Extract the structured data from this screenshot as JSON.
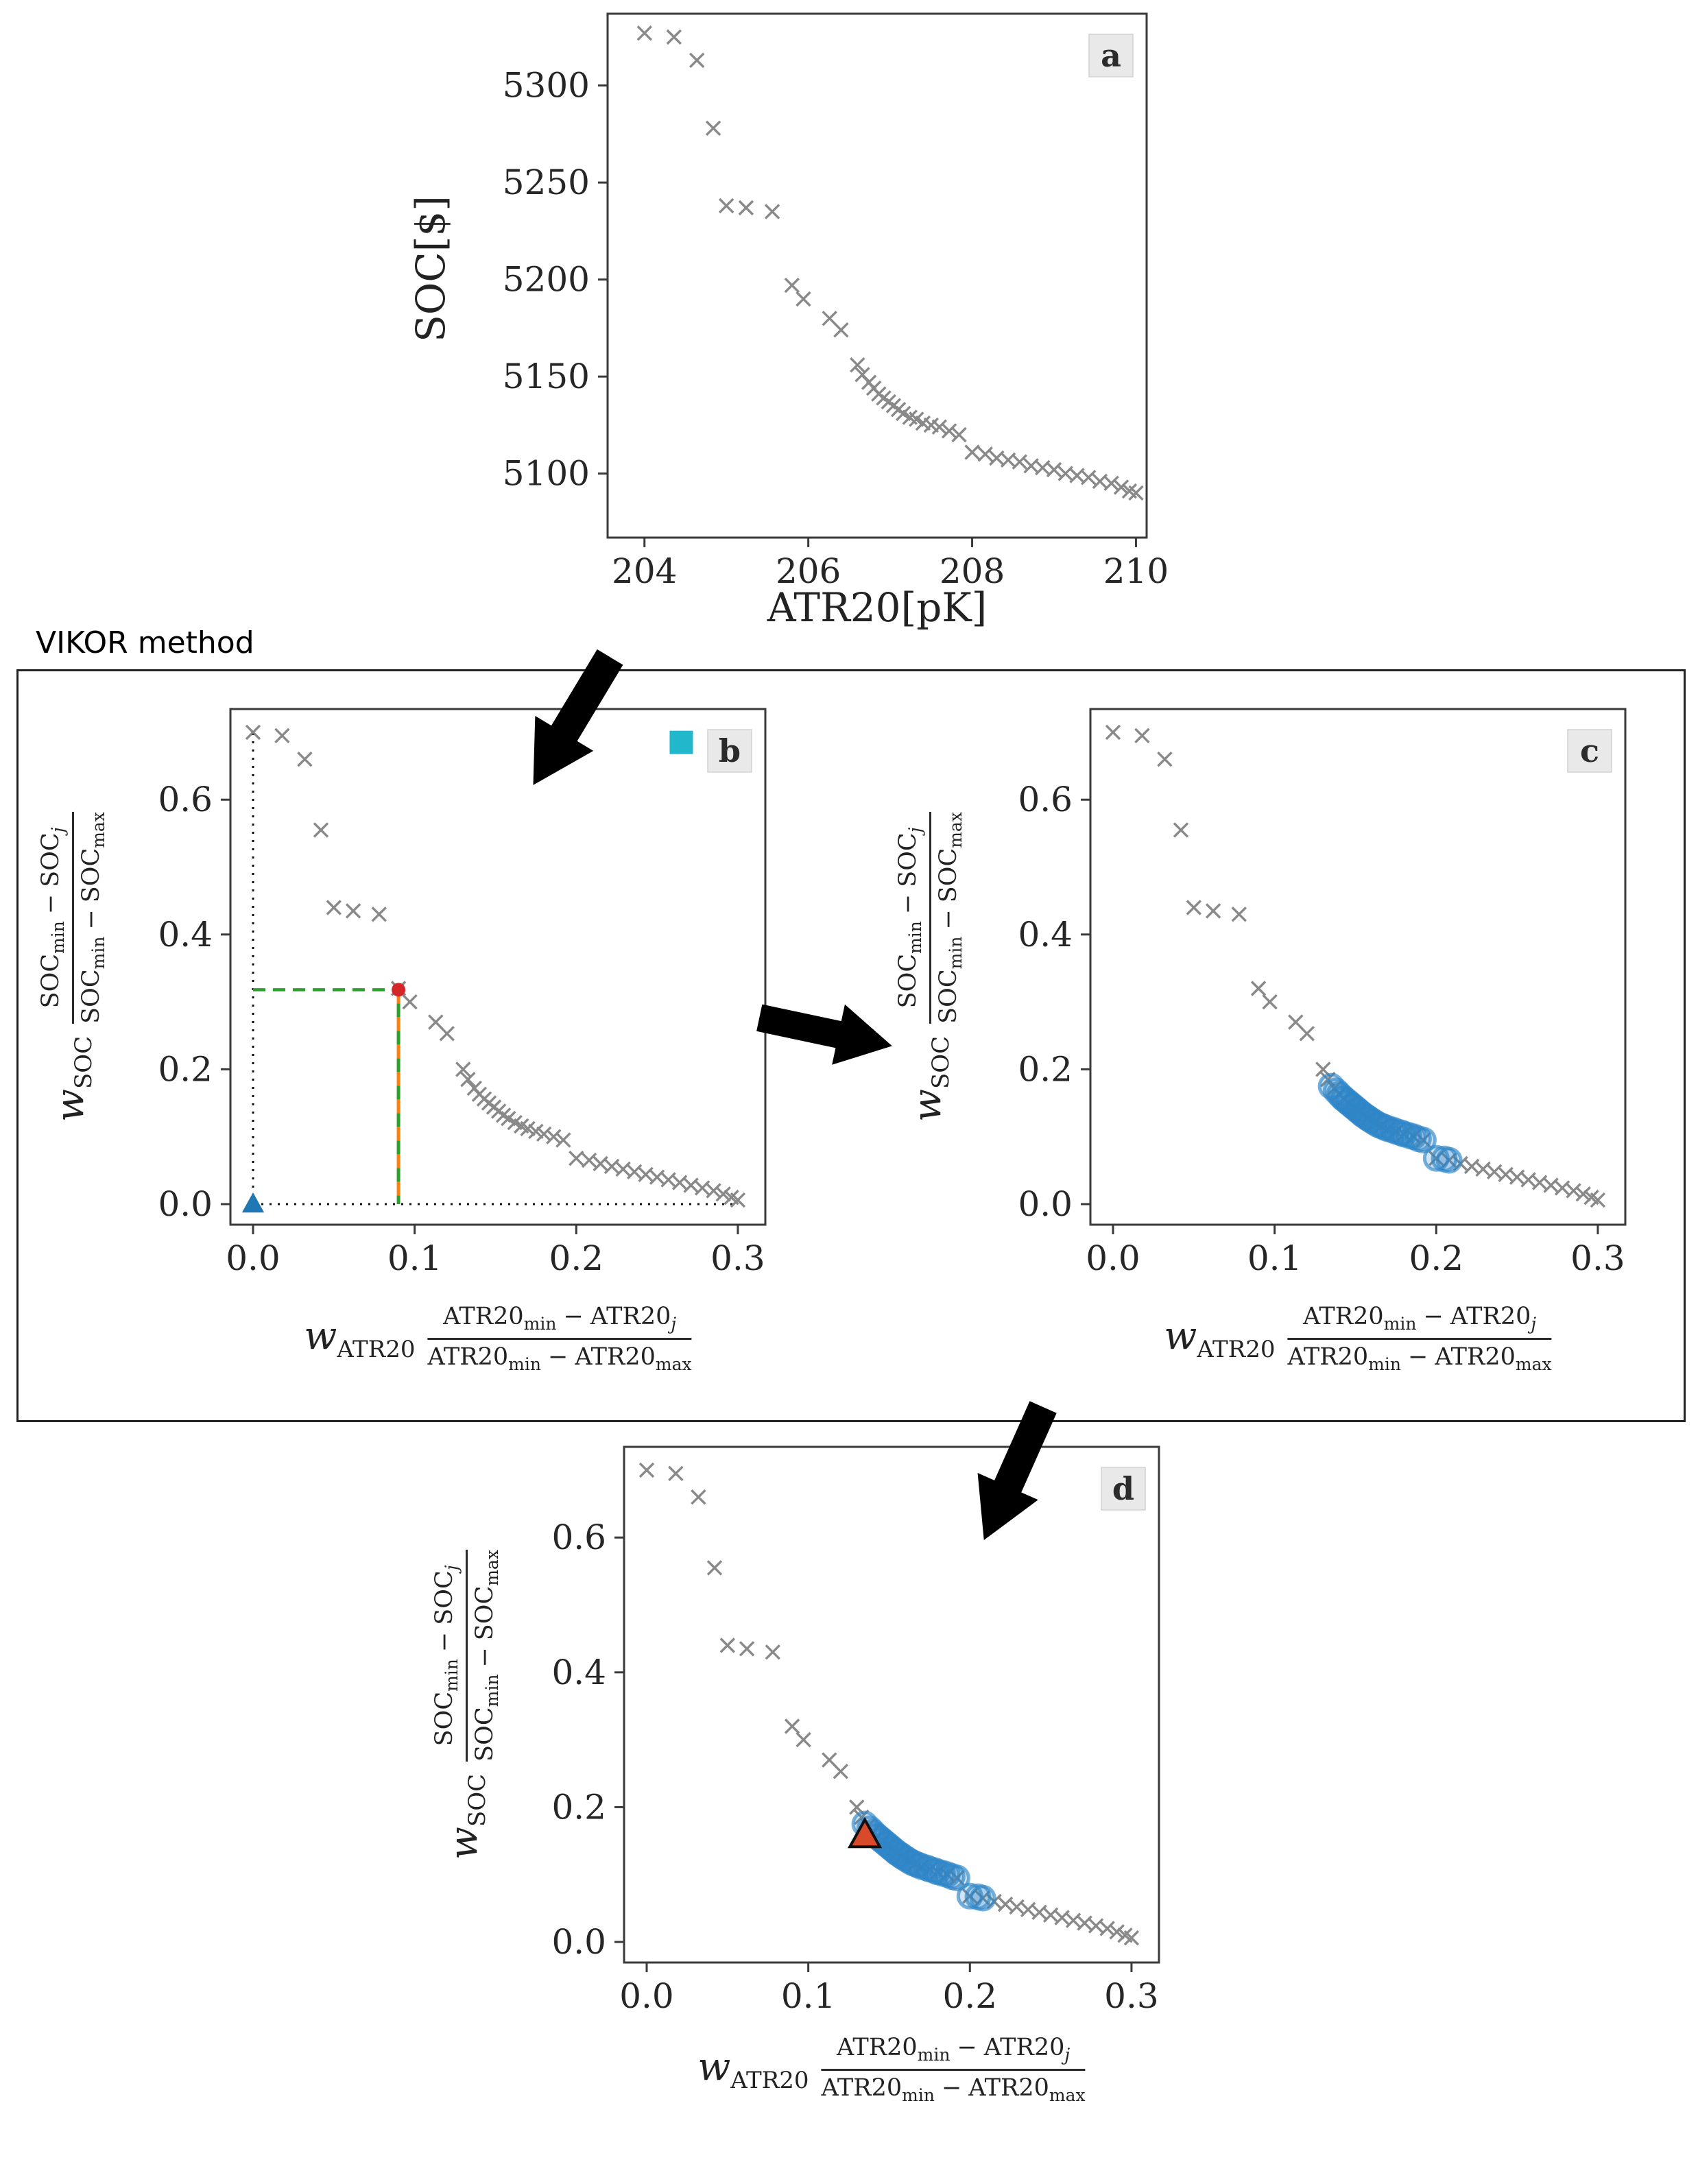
{
  "figure": {
    "vikor_label": "VIKOR method"
  },
  "norm_axis": {
    "x": {
      "w": "w",
      "wsub": "ATR20",
      "minus": "−",
      "num_a": "ATR20",
      "num_asub": "min",
      "num_b": "ATR20",
      "num_bsub": "j",
      "den_a": "ATR20",
      "den_asub": "min",
      "den_b": "ATR20",
      "den_bsub": "max"
    },
    "y": {
      "w": "w",
      "wsub": "SOC",
      "minus": "−",
      "num_a": "SOC",
      "num_asub": "min",
      "num_b": "SOC",
      "num_bsub": "j",
      "den_a": "SOC",
      "den_asub": "min",
      "den_b": "SOC",
      "den_bsub": "max"
    }
  },
  "normalized_points": [
    [
      0.0,
      0.7
    ],
    [
      0.018,
      0.695
    ],
    [
      0.032,
      0.66
    ],
    [
      0.042,
      0.555
    ],
    [
      0.05,
      0.44
    ],
    [
      0.062,
      0.435
    ],
    [
      0.078,
      0.43
    ],
    [
      0.09,
      0.32
    ],
    [
      0.097,
      0.3
    ],
    [
      0.113,
      0.27
    ],
    [
      0.12,
      0.253
    ],
    [
      0.13,
      0.2
    ],
    [
      0.133,
      0.185
    ],
    [
      0.137,
      0.172
    ],
    [
      0.14,
      0.163
    ],
    [
      0.143,
      0.156
    ],
    [
      0.146,
      0.15
    ],
    [
      0.149,
      0.144
    ],
    [
      0.152,
      0.138
    ],
    [
      0.155,
      0.132
    ],
    [
      0.158,
      0.127
    ],
    [
      0.162,
      0.121
    ],
    [
      0.166,
      0.116
    ],
    [
      0.17,
      0.112
    ],
    [
      0.175,
      0.108
    ],
    [
      0.18,
      0.104
    ],
    [
      0.186,
      0.1
    ],
    [
      0.192,
      0.095
    ],
    [
      0.2,
      0.068
    ],
    [
      0.208,
      0.065
    ],
    [
      0.215,
      0.06
    ],
    [
      0.222,
      0.056
    ],
    [
      0.229,
      0.052
    ],
    [
      0.236,
      0.048
    ],
    [
      0.243,
      0.044
    ],
    [
      0.25,
      0.04
    ],
    [
      0.257,
      0.036
    ],
    [
      0.264,
      0.032
    ],
    [
      0.271,
      0.028
    ],
    [
      0.278,
      0.024
    ],
    [
      0.285,
      0.02
    ],
    [
      0.291,
      0.015
    ],
    [
      0.296,
      0.01
    ],
    [
      0.3,
      0.006
    ]
  ],
  "highlight_points": [
    [
      0.135,
      0.175
    ],
    [
      0.138,
      0.168
    ],
    [
      0.14,
      0.163
    ],
    [
      0.142,
      0.158
    ],
    [
      0.143,
      0.156
    ],
    [
      0.145,
      0.152
    ],
    [
      0.146,
      0.15
    ],
    [
      0.148,
      0.146
    ],
    [
      0.149,
      0.144
    ],
    [
      0.151,
      0.14
    ],
    [
      0.152,
      0.138
    ],
    [
      0.154,
      0.134
    ],
    [
      0.155,
      0.132
    ],
    [
      0.157,
      0.129
    ],
    [
      0.158,
      0.127
    ],
    [
      0.16,
      0.124
    ],
    [
      0.162,
      0.121
    ],
    [
      0.164,
      0.118
    ],
    [
      0.166,
      0.116
    ],
    [
      0.168,
      0.114
    ],
    [
      0.17,
      0.112
    ],
    [
      0.173,
      0.11
    ],
    [
      0.175,
      0.108
    ],
    [
      0.178,
      0.106
    ],
    [
      0.18,
      0.104
    ],
    [
      0.183,
      0.102
    ],
    [
      0.186,
      0.1
    ],
    [
      0.189,
      0.097
    ],
    [
      0.192,
      0.095
    ],
    [
      0.2,
      0.068
    ],
    [
      0.205,
      0.067
    ],
    [
      0.208,
      0.065
    ]
  ],
  "chart_data": [
    {
      "id": "a",
      "type": "scatter",
      "label": "a",
      "xlabel": "ATR20[pK]",
      "ylabel": "SOC[$]",
      "xlim": [
        203.55,
        210.13
      ],
      "ylim": [
        5067,
        5337
      ],
      "xticks": [
        "204",
        "206",
        "208",
        "210"
      ],
      "yticks": [
        "5100",
        "5150",
        "5200",
        "5250",
        "5300"
      ],
      "point_color": "#7f7f7f",
      "points": [
        [
          204.0,
          5327
        ],
        [
          204.36,
          5325
        ],
        [
          204.64,
          5313
        ],
        [
          204.84,
          5278
        ],
        [
          205.0,
          5238
        ],
        [
          205.24,
          5237
        ],
        [
          205.56,
          5235
        ],
        [
          205.8,
          5197
        ],
        [
          205.94,
          5190
        ],
        [
          206.26,
          5180
        ],
        [
          206.4,
          5174
        ],
        [
          206.6,
          5156
        ],
        [
          206.66,
          5151
        ],
        [
          206.74,
          5147
        ],
        [
          206.8,
          5144
        ],
        [
          206.86,
          5141
        ],
        [
          206.92,
          5139
        ],
        [
          206.98,
          5137
        ],
        [
          207.04,
          5135
        ],
        [
          207.1,
          5133
        ],
        [
          207.16,
          5131
        ],
        [
          207.24,
          5129
        ],
        [
          207.32,
          5128
        ],
        [
          207.4,
          5126
        ],
        [
          207.5,
          5125
        ],
        [
          207.6,
          5124
        ],
        [
          207.72,
          5122
        ],
        [
          207.84,
          5120
        ],
        [
          208.0,
          5111
        ],
        [
          208.16,
          5110
        ],
        [
          208.3,
          5108
        ],
        [
          208.44,
          5107
        ],
        [
          208.58,
          5106
        ],
        [
          208.72,
          5104
        ],
        [
          208.86,
          5103
        ],
        [
          209.0,
          5102
        ],
        [
          209.14,
          5100
        ],
        [
          209.28,
          5099
        ],
        [
          209.42,
          5098
        ],
        [
          209.56,
          5096
        ],
        [
          209.7,
          5095
        ],
        [
          209.82,
          5093
        ],
        [
          209.92,
          5091
        ],
        [
          210.0,
          5090
        ]
      ]
    },
    {
      "id": "b",
      "type": "scatter",
      "label": "b",
      "xlabel_text": "w_ATR20 (ATR20min − ATR20j)/(ATR20min − ATR20max)",
      "ylabel_text": "w_SOC (SOCmin − SOCj)/(SOCmin − SOCmax)",
      "xlim": [
        -0.014,
        0.317
      ],
      "ylim": [
        -0.0305,
        0.7345
      ],
      "xticks": [
        "0.0",
        "0.1",
        "0.2",
        "0.3"
      ],
      "yticks": [
        "0.0",
        "0.2",
        "0.4",
        "0.6"
      ],
      "point_color": "#7f7f7f",
      "points_key": "normalized_points",
      "lines": [
        {
          "x1": 0.0,
          "y1": 0.0,
          "x2": 0.0,
          "y2": 0.7,
          "color": "#111111",
          "dash": "3 9",
          "width": 3
        },
        {
          "x1": 0.0,
          "y1": 0.0,
          "x2": 0.3,
          "y2": 0.0,
          "color": "#111111",
          "dash": "3 9",
          "width": 3
        },
        {
          "x1": 0.0,
          "y1": 0.318,
          "x2": 0.09,
          "y2": 0.318,
          "color": "#2ca02c",
          "dash": "18 11",
          "width": 4.5
        },
        {
          "x1": 0.09,
          "y1": 0.318,
          "x2": 0.09,
          "y2": 0.0,
          "color": "#ff7f0e",
          "dash": "20 20",
          "width": 5
        },
        {
          "x1": 0.09,
          "y1": 0.318,
          "x2": 0.09,
          "y2": 0.0,
          "color": "#2ca02c",
          "dash": "20 20",
          "width": 5,
          "dashoffset": 20
        }
      ],
      "markers": [
        {
          "shape": "triangle",
          "x": 0.0,
          "y": 0.0,
          "color": "#1f77b4",
          "size": 17
        },
        {
          "shape": "square",
          "x": 0.265,
          "y": 0.685,
          "color": "#22b8cc",
          "size": 17
        },
        {
          "shape": "dot",
          "x": 0.09,
          "y": 0.318,
          "color": "#d62728",
          "size": 10
        }
      ]
    },
    {
      "id": "c",
      "type": "scatter",
      "label": "c",
      "xlabel_text": "w_ATR20 (ATR20min − ATR20j)/(ATR20min − ATR20max)",
      "ylabel_text": "w_SOC (SOCmin − SOCj)/(SOCmin − SOCmax)",
      "xlim": [
        -0.014,
        0.317
      ],
      "ylim": [
        -0.0305,
        0.7345
      ],
      "xticks": [
        "0.0",
        "0.1",
        "0.2",
        "0.3"
      ],
      "yticks": [
        "0.0",
        "0.2",
        "0.4",
        "0.6"
      ],
      "point_color": "#7f7f7f",
      "points_key": "normalized_points",
      "highlight_key": "highlight_points",
      "highlight_color": "#2e86c8"
    },
    {
      "id": "d",
      "type": "scatter",
      "label": "d",
      "xlabel_text": "w_ATR20 (ATR20min − ATR20j)/(ATR20min − ATR20max)",
      "ylabel_text": "w_SOC (SOCmin − SOCj)/(SOCmin − SOCmax)",
      "xlim": [
        -0.014,
        0.317
      ],
      "ylim": [
        -0.0305,
        0.7345
      ],
      "xticks": [
        "0.0",
        "0.1",
        "0.2",
        "0.3"
      ],
      "yticks": [
        "0.0",
        "0.2",
        "0.4",
        "0.6"
      ],
      "point_color": "#7f7f7f",
      "points_key": "normalized_points",
      "highlight_key": "highlight_points",
      "highlight_color": "#2e86c8",
      "markers": [
        {
          "shape": "triangle",
          "x": 0.135,
          "y": 0.158,
          "color": "#d94a2b",
          "edge": "#111111",
          "size": 23
        }
      ]
    }
  ]
}
